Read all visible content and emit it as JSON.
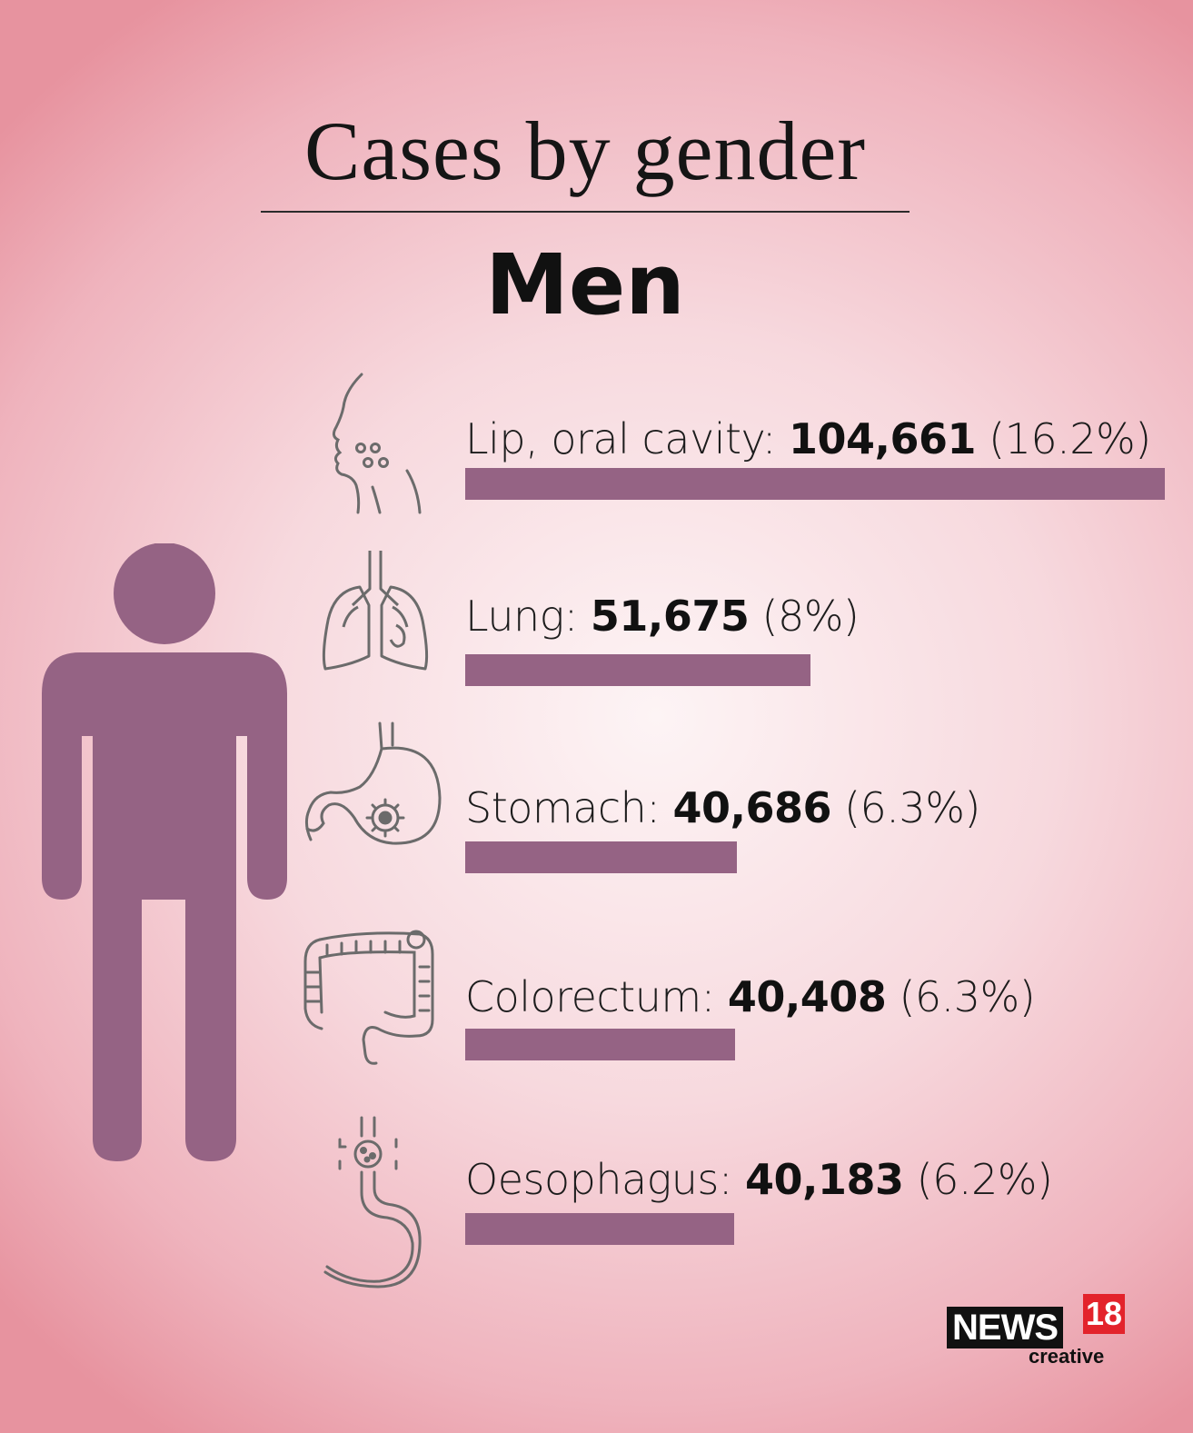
{
  "chart_data": {
    "type": "bar",
    "title": "Cases by gender",
    "subtitle": "Men",
    "categories": [
      "Lip, oral cavity",
      "Lung",
      "Stomach",
      "Colorectum",
      "Oesophagus"
    ],
    "values": [
      104661,
      51675,
      40686,
      40408,
      40183
    ],
    "value_labels": [
      "104,661",
      "51,675",
      "40,686",
      "40,408",
      "40,183"
    ],
    "percent_labels": [
      "(16.2%)",
      "(8%)",
      "(6.3%)",
      "(6.3%)",
      "(6.2%)"
    ],
    "xlim": [
      0,
      104661
    ]
  },
  "rows": [
    {
      "label": "Lip, oral cavity:",
      "value": "104,661",
      "percent": "(16.2%)"
    },
    {
      "label": "Lung:",
      "value": "51,675",
      "percent": "(8%)"
    },
    {
      "label": "Stomach:",
      "value": "40,686",
      "percent": "(6.3%)"
    },
    {
      "label": "Colorectum:",
      "value": "40,408",
      "percent": "(6.3%)"
    },
    {
      "label": "Oesophagus:",
      "value": "40,183",
      "percent": "(6.2%)"
    }
  ],
  "icons": [
    "mouth-icon",
    "lungs-icon",
    "stomach-icon",
    "colon-icon",
    "oesophagus-icon"
  ],
  "colors": {
    "bar": "#956384",
    "figure": "#956384",
    "icon_stroke": "#6b6b6b"
  },
  "logo": {
    "brand": "NEWS",
    "number": "18",
    "tagline": "creative"
  }
}
